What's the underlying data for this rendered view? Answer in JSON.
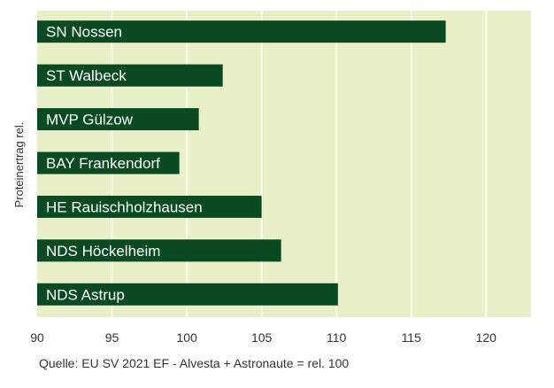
{
  "chart_data": {
    "type": "bar",
    "orientation": "horizontal",
    "ylabel": "Proteinertrag rel.",
    "categories": [
      "SN Nossen",
      "ST Walbeck",
      "MVP Gülzow",
      "BAY Frankendorf",
      "HE Rauischholzhausen",
      "NDS Höckelheim",
      "NDS Astrup"
    ],
    "values": [
      117.3,
      102.4,
      100.8,
      99.5,
      105.0,
      106.3,
      110.1
    ],
    "xlim": [
      90,
      123
    ],
    "xticks": [
      90,
      95,
      100,
      105,
      110,
      115,
      120
    ],
    "grid": true,
    "source": "Quelle: EU SV 2021 EF - Alvesta + Astronaute = rel. 100",
    "colors": {
      "bar": "#0a4a22",
      "plot_bg": "#e9efc6",
      "gridline": "#ffffff"
    }
  }
}
